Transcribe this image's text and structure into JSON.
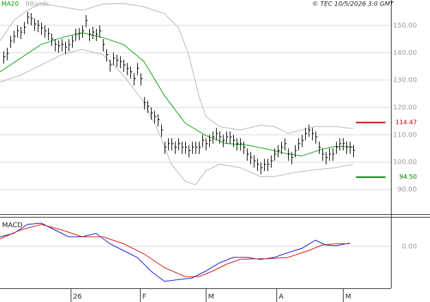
{
  "chart_data": [
    {
      "type": "ohlc",
      "source": "© TEC 10/5/2026 3:0 GMT",
      "xlim": [
        0,
        114
      ],
      "ylim": [
        81,
        159.25
      ],
      "yticks": [
        {
          "value": 90,
          "label": "90.00"
        },
        {
          "value": 100,
          "label": "100.00"
        },
        {
          "value": 110,
          "label": "110.00"
        },
        {
          "value": 120,
          "label": "120.00"
        },
        {
          "value": 130,
          "label": "130.00"
        },
        {
          "value": 140,
          "label": "140.00"
        },
        {
          "value": 150,
          "label": "150.00"
        }
      ],
      "grid": true,
      "bar_color": "#000000",
      "high": [
        140.5,
        141.75,
        146.25,
        148.0,
        150.0,
        149.5,
        151.25,
        155.0,
        154.5,
        152.5,
        152.0,
        151.0,
        150.0,
        149.0,
        147.0,
        145.0,
        144.5,
        145.0,
        144.0,
        145.0,
        146.25,
        148.75,
        149.0,
        150.0,
        153.75,
        148.75,
        149.5,
        148.75,
        150.0,
        145.0,
        141.25,
        137.5,
        140.0,
        139.25,
        138.75,
        137.5,
        136.25,
        135.0,
        132.5,
        136.25,
        132.5,
        123.75,
        122.5,
        120.0,
        118.75,
        117.5,
        113.75,
        107.5,
        108.75,
        108.75,
        107.5,
        108.75,
        107.5,
        107.5,
        106.25,
        107.5,
        107.5,
        107.5,
        110.0,
        108.75,
        110.0,
        111.25,
        112.5,
        111.25,
        110.0,
        111.25,
        111.25,
        110.0,
        108.75,
        108.75,
        107.5,
        105.0,
        103.75,
        102.5,
        101.25,
        100.0,
        101.25,
        101.25,
        102.5,
        105.0,
        106.25,
        107.5,
        108.75,
        105.0,
        103.75,
        106.25,
        108.75,
        110.0,
        112.5,
        113.75,
        112.5,
        111.25,
        107.5,
        105.0,
        103.75,
        105.0,
        105.0,
        107.5,
        108.75,
        108.75,
        107.5,
        107.5,
        106.25
      ],
      "low": [
        136.0,
        137.25,
        141.75,
        143.5,
        145.5,
        145.0,
        146.75,
        150.5,
        150.0,
        148.0,
        147.5,
        146.5,
        145.5,
        144.5,
        142.5,
        140.5,
        140.0,
        140.5,
        139.5,
        140.5,
        141.75,
        144.25,
        144.5,
        145.5,
        149.25,
        144.25,
        145.0,
        144.25,
        145.5,
        140.5,
        136.75,
        133.0,
        135.5,
        134.75,
        134.25,
        133.0,
        131.75,
        130.5,
        128.0,
        131.75,
        128.0,
        119.25,
        118.0,
        115.5,
        114.25,
        113.0,
        109.25,
        103.0,
        104.25,
        104.25,
        103.0,
        104.25,
        103.0,
        103.0,
        101.75,
        103.0,
        103.0,
        103.0,
        105.5,
        104.25,
        105.5,
        106.75,
        108.0,
        106.75,
        105.5,
        106.75,
        106.75,
        105.5,
        104.25,
        104.25,
        103.0,
        100.5,
        99.25,
        98.0,
        96.75,
        95.5,
        96.75,
        96.75,
        98.0,
        100.5,
        101.75,
        103.0,
        104.25,
        100.5,
        99.25,
        101.75,
        104.25,
        105.5,
        108.0,
        109.25,
        108.0,
        106.75,
        103.0,
        100.5,
        99.25,
        100.5,
        100.5,
        103.0,
        104.25,
        104.25,
        103.0,
        103.0,
        101.75
      ],
      "close": [
        138.5,
        139.75,
        144.25,
        146.0,
        148.0,
        147.5,
        149.25,
        153.0,
        152.5,
        150.5,
        150.0,
        149.0,
        148.0,
        147.0,
        145.0,
        143.0,
        142.5,
        143.0,
        142.0,
        143.0,
        144.25,
        146.75,
        147.0,
        148.0,
        151.75,
        146.75,
        147.5,
        146.75,
        148.0,
        143.0,
        139.25,
        135.5,
        138.0,
        137.25,
        136.75,
        135.5,
        134.25,
        133.0,
        130.5,
        134.25,
        130.5,
        121.75,
        120.5,
        118.0,
        116.75,
        115.5,
        111.75,
        105.5,
        106.75,
        106.75,
        105.5,
        106.75,
        105.5,
        105.5,
        104.25,
        105.5,
        105.5,
        105.5,
        108.0,
        106.75,
        108.0,
        109.25,
        110.5,
        109.25,
        108.0,
        109.25,
        109.25,
        108.0,
        106.75,
        106.75,
        105.5,
        103.0,
        101.75,
        100.5,
        99.25,
        98.0,
        99.25,
        99.25,
        100.5,
        103.0,
        104.25,
        105.5,
        106.75,
        103.0,
        101.75,
        104.25,
        106.75,
        108.0,
        110.5,
        111.75,
        110.5,
        109.25,
        105.5,
        103.0,
        101.75,
        103.0,
        103.0,
        105.5,
        106.75,
        106.75,
        105.5,
        105.5,
        104.25
      ],
      "series": [
        {
          "name": "MA20",
          "color": "#00a000",
          "x": [
            0,
            6,
            12,
            18,
            24,
            30,
            36,
            42,
            48,
            54,
            60,
            66,
            72,
            78,
            84,
            88,
            94,
            98,
            103
          ],
          "values": [
            133.0,
            138.0,
            143.0,
            145.5,
            147.25,
            145.5,
            143.0,
            136.75,
            124.25,
            114.25,
            109.75,
            106.75,
            106.25,
            104.75,
            103.0,
            102.25,
            104.75,
            105.75,
            105.5
          ]
        }
      ],
      "bands": {
        "name": "BBands",
        "color": "#b4b4b4",
        "upper": {
          "x": [
            0,
            4,
            8,
            12,
            18,
            24,
            30,
            36,
            42,
            48,
            52,
            55,
            58,
            60,
            64,
            70,
            76,
            80,
            84,
            88,
            92,
            98,
            103
          ],
          "values": [
            144.25,
            151.75,
            155.5,
            158.0,
            156.75,
            155.5,
            157.75,
            158.0,
            156.75,
            154.25,
            149.25,
            139.25,
            124.25,
            116.75,
            113.0,
            111.75,
            113.5,
            113.0,
            110.5,
            111.75,
            113.0,
            113.0,
            112.25
          ]
        },
        "lower": {
          "x": [
            0,
            6,
            12,
            18,
            24,
            30,
            36,
            42,
            46,
            50,
            54,
            57,
            60,
            64,
            70,
            76,
            80,
            86,
            92,
            98,
            103
          ],
          "values": [
            129.25,
            131.75,
            135.5,
            139.25,
            141.25,
            139.25,
            131.75,
            121.75,
            111.75,
            99.25,
            93.0,
            91.75,
            96.75,
            99.25,
            98.0,
            94.75,
            94.75,
            96.25,
            97.25,
            98.0,
            99.25
          ]
        }
      },
      "levels": [
        {
          "value": 114.47,
          "label": "114.47",
          "color": "#cc0000"
        },
        {
          "value": 94.5,
          "label": "94.50",
          "color": "#008000"
        }
      ]
    },
    {
      "type": "line",
      "title": "MACD",
      "xlim": [
        0,
        114
      ],
      "ylim": [
        -6.1,
        4.3
      ],
      "yticks": [
        {
          "value": 0,
          "label": "0.00"
        }
      ],
      "grid": true,
      "xticks": [
        {
          "value": 20.6,
          "label": "26"
        },
        {
          "value": 40.8,
          "label": "F"
        },
        {
          "value": 60,
          "label": "M"
        },
        {
          "value": 80.6,
          "label": "A"
        },
        {
          "value": 100,
          "label": "M"
        }
      ],
      "series": [
        {
          "color": "#1010d0",
          "x": [
            0,
            4,
            8,
            12,
            16,
            20,
            24,
            28,
            32,
            36,
            40,
            44,
            48,
            51,
            56,
            60,
            64,
            68,
            72,
            76,
            80,
            84,
            88,
            92,
            95,
            98,
            102
          ],
          "values": [
            1.4,
            1.9,
            3.2,
            3.4,
            2.4,
            1.4,
            1.4,
            1.9,
            0.4,
            -0.6,
            -1.6,
            -3.6,
            -5.1,
            -4.9,
            -4.6,
            -3.6,
            -2.4,
            -1.6,
            -1.6,
            -1.9,
            -1.6,
            -0.9,
            -0.3,
            0.9,
            0.2,
            0.1,
            0.5
          ]
        },
        {
          "color": "#d01010",
          "x": [
            0,
            6,
            12,
            18,
            24,
            30,
            36,
            42,
            48,
            54,
            58,
            62,
            66,
            70,
            74,
            78,
            84,
            90,
            94,
            98,
            102
          ],
          "values": [
            1.1,
            2.4,
            3.2,
            2.4,
            1.4,
            1.4,
            0.4,
            -1.1,
            -3.1,
            -4.4,
            -4.4,
            -3.6,
            -2.6,
            -1.9,
            -1.8,
            -1.8,
            -1.6,
            -0.6,
            0.2,
            0.4,
            0.4
          ]
        }
      ]
    }
  ]
}
